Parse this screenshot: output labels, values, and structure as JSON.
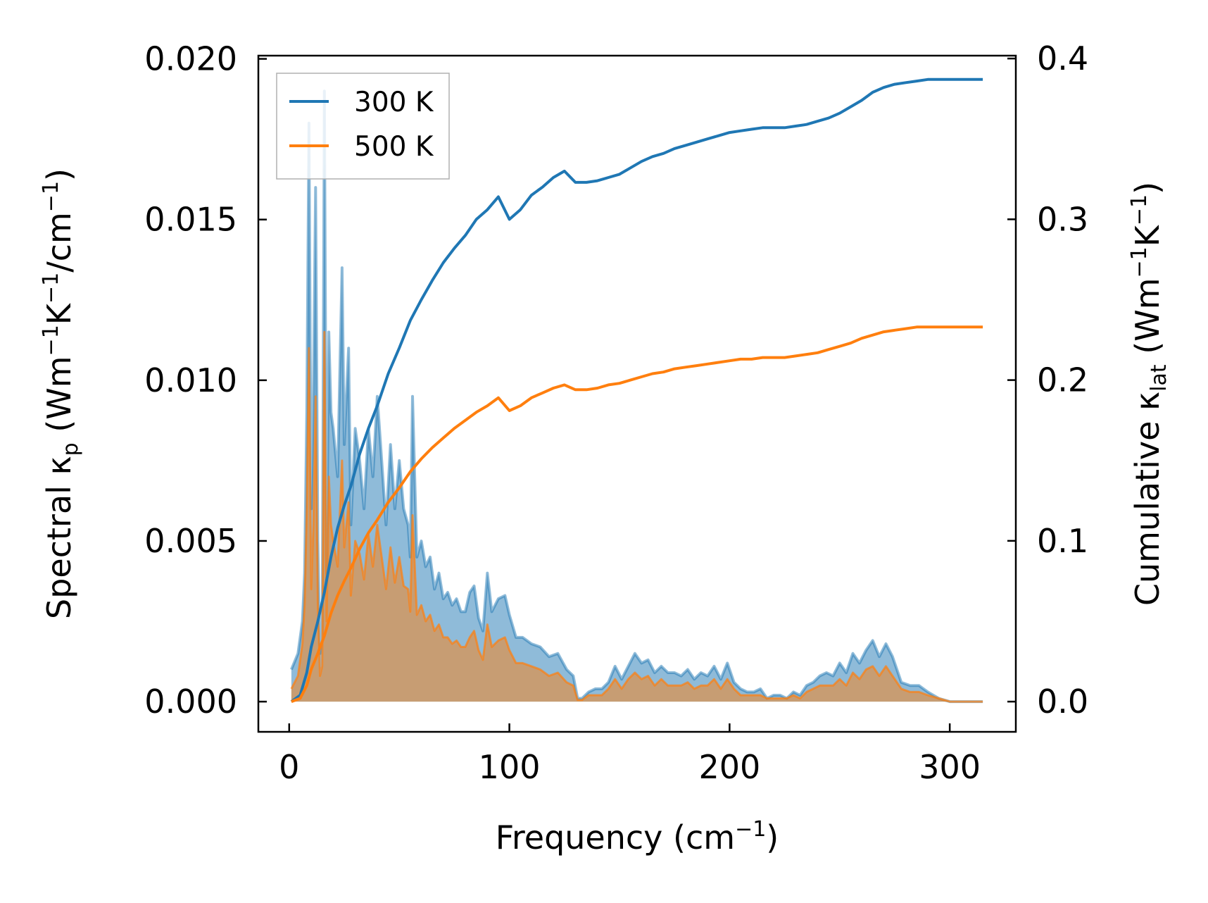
{
  "chart_data": {
    "type": "line",
    "title": "",
    "xlabel": "Frequency (cm⁻¹)",
    "ylabel_left": "Spectral κₚ (Wm⁻¹K⁻¹/cm⁻¹)",
    "ylabel_right": "Cumulative κ_lat (Wm⁻¹K⁻¹)",
    "xlim": [
      -14,
      330
    ],
    "ylim_left": [
      -0.00094,
      0.0201
    ],
    "ylim_right": [
      -0.0188,
      0.4018
    ],
    "x_ticks": [
      0,
      100,
      200,
      300
    ],
    "y_left_ticks": [
      "0.000",
      "0.005",
      "0.010",
      "0.015",
      "0.020"
    ],
    "y_right_ticks": [
      "0.0",
      "0.1",
      "0.2",
      "0.3",
      "0.4"
    ],
    "legend": {
      "position": "top-left",
      "entries": [
        "300 K",
        "500 K"
      ]
    },
    "colors": {
      "t300": "#1f77b4",
      "t500": "#ff7f0e"
    },
    "spectral_x": [
      1,
      4,
      6,
      7,
      8,
      9,
      10,
      11,
      12,
      13,
      14,
      15,
      16,
      17,
      18,
      19,
      20,
      22,
      24,
      25,
      27,
      28,
      30,
      32,
      34,
      36,
      38,
      40,
      42,
      44,
      46,
      48,
      50,
      52,
      54,
      55,
      56,
      58,
      60,
      62,
      64,
      66,
      68,
      70,
      72,
      74,
      76,
      78,
      80,
      82,
      84,
      86,
      88,
      90,
      92,
      95,
      98,
      100,
      103,
      106,
      110,
      114,
      118,
      122,
      126,
      129,
      131,
      133,
      136,
      139,
      142,
      145,
      148,
      151,
      154,
      157,
      160,
      163,
      166,
      169,
      172,
      175,
      178,
      181,
      184,
      187,
      190,
      193,
      196,
      199,
      202,
      205,
      208,
      211,
      214,
      217,
      220,
      223,
      226,
      229,
      232,
      235,
      238,
      241,
      244,
      247,
      250,
      253,
      256,
      259,
      262,
      265,
      268,
      271,
      274,
      278,
      282,
      286,
      290,
      295,
      300,
      315
    ],
    "spectral_300": [
      0.001,
      0.0015,
      0.0025,
      0.004,
      0.009,
      0.018,
      0.006,
      0.0095,
      0.016,
      0.005,
      0.0015,
      0.002,
      0.019,
      0.004,
      0.0115,
      0.009,
      0.0085,
      0.007,
      0.0135,
      0.008,
      0.011,
      0.0055,
      0.0085,
      0.0075,
      0.006,
      0.0085,
      0.007,
      0.0095,
      0.0075,
      0.0055,
      0.008,
      0.006,
      0.0075,
      0.006,
      0.0055,
      0.0045,
      0.0095,
      0.0045,
      0.005,
      0.0042,
      0.0045,
      0.0035,
      0.004,
      0.0032,
      0.0034,
      0.003,
      0.0032,
      0.0028,
      0.0028,
      0.0034,
      0.0036,
      0.0026,
      0.0022,
      0.004,
      0.0028,
      0.0032,
      0.0033,
      0.0027,
      0.002,
      0.002,
      0.0018,
      0.0017,
      0.0014,
      0.0015,
      0.001,
      0.0008,
      0.0001,
      0.0001,
      0.0003,
      0.0004,
      0.0004,
      0.0006,
      0.0011,
      0.0007,
      0.0011,
      0.0015,
      0.0012,
      0.0013,
      0.0009,
      0.0011,
      0.0009,
      0.0009,
      0.0008,
      0.001,
      0.0007,
      0.0009,
      0.0008,
      0.0011,
      0.0007,
      0.0012,
      0.0006,
      0.0004,
      0.0003,
      0.0003,
      0.0004,
      0.0001,
      0.0002,
      0.0002,
      0.0001,
      0.0003,
      0.0002,
      0.0005,
      0.0006,
      0.0008,
      0.0009,
      0.0008,
      0.0012,
      0.0009,
      0.0015,
      0.0012,
      0.0016,
      0.0019,
      0.0014,
      0.0018,
      0.0014,
      0.0006,
      0.0005,
      0.0005,
      0.0003,
      0.0001,
      0.0,
      0.0
    ],
    "spectral_500": [
      0.0004,
      0.0008,
      0.0018,
      0.003,
      0.006,
      0.011,
      0.0035,
      0.0055,
      0.0095,
      0.003,
      0.0008,
      0.0011,
      0.0115,
      0.0025,
      0.007,
      0.0055,
      0.005,
      0.0042,
      0.0075,
      0.0048,
      0.0062,
      0.0033,
      0.005,
      0.0046,
      0.0038,
      0.0052,
      0.0042,
      0.0055,
      0.0045,
      0.0035,
      0.0048,
      0.0037,
      0.0045,
      0.0036,
      0.0035,
      0.0028,
      0.0058,
      0.0027,
      0.003,
      0.0025,
      0.0027,
      0.0022,
      0.0024,
      0.002,
      0.002,
      0.0018,
      0.0019,
      0.0017,
      0.0017,
      0.002,
      0.0022,
      0.0016,
      0.0013,
      0.0024,
      0.0017,
      0.0019,
      0.002,
      0.0016,
      0.0012,
      0.0012,
      0.0011,
      0.001,
      0.0008,
      0.0009,
      0.0006,
      0.0005,
      5e-05,
      5e-05,
      0.0002,
      0.0002,
      0.0002,
      0.0004,
      0.0007,
      0.0004,
      0.0007,
      0.0009,
      0.0007,
      0.0008,
      0.0005,
      0.0007,
      0.0005,
      0.0005,
      0.0005,
      0.0006,
      0.0004,
      0.0005,
      0.0005,
      0.0007,
      0.0004,
      0.0007,
      0.0004,
      0.0002,
      0.0002,
      0.0002,
      0.0002,
      0.0001,
      0.0001,
      0.0001,
      0.0001,
      0.0002,
      0.0001,
      0.0003,
      0.0004,
      0.0005,
      0.0005,
      0.0005,
      0.0007,
      0.0005,
      0.0009,
      0.0007,
      0.001,
      0.0011,
      0.0008,
      0.0011,
      0.0008,
      0.0004,
      0.0003,
      0.0003,
      0.0002,
      0.0001,
      0.0,
      0.0
    ],
    "cumulative_x": [
      1,
      5,
      8,
      10,
      13,
      16,
      19,
      22,
      25,
      28,
      32,
      36,
      40,
      45,
      50,
      55,
      60,
      65,
      70,
      75,
      80,
      85,
      90,
      95,
      100,
      105,
      110,
      115,
      120,
      125,
      130,
      135,
      140,
      145,
      150,
      155,
      160,
      165,
      170,
      175,
      180,
      185,
      190,
      195,
      200,
      205,
      210,
      215,
      220,
      225,
      230,
      235,
      240,
      245,
      250,
      255,
      260,
      265,
      270,
      275,
      280,
      285,
      290,
      295,
      300,
      315
    ],
    "cumulative_300": [
      0.0,
      0.004,
      0.018,
      0.034,
      0.05,
      0.068,
      0.09,
      0.108,
      0.122,
      0.134,
      0.154,
      0.17,
      0.184,
      0.204,
      0.22,
      0.237,
      0.25,
      0.262,
      0.273,
      0.282,
      0.29,
      0.3,
      0.306,
      0.314,
      0.3,
      0.306,
      0.315,
      0.32,
      0.326,
      0.33,
      0.323,
      0.323,
      0.324,
      0.326,
      0.328,
      0.332,
      0.336,
      0.339,
      0.341,
      0.344,
      0.346,
      0.348,
      0.35,
      0.352,
      0.354,
      0.355,
      0.356,
      0.357,
      0.357,
      0.357,
      0.358,
      0.359,
      0.361,
      0.363,
      0.366,
      0.37,
      0.374,
      0.379,
      0.382,
      0.384,
      0.385,
      0.386,
      0.387,
      0.387,
      0.387,
      0.387
    ],
    "cumulative_500": [
      0.0,
      0.002,
      0.01,
      0.02,
      0.03,
      0.041,
      0.055,
      0.066,
      0.075,
      0.083,
      0.095,
      0.105,
      0.113,
      0.124,
      0.133,
      0.143,
      0.151,
      0.158,
      0.164,
      0.17,
      0.175,
      0.18,
      0.184,
      0.189,
      0.181,
      0.184,
      0.189,
      0.192,
      0.195,
      0.197,
      0.194,
      0.194,
      0.195,
      0.197,
      0.198,
      0.2,
      0.202,
      0.204,
      0.205,
      0.207,
      0.208,
      0.209,
      0.21,
      0.211,
      0.212,
      0.213,
      0.213,
      0.214,
      0.214,
      0.214,
      0.215,
      0.216,
      0.217,
      0.219,
      0.221,
      0.223,
      0.226,
      0.228,
      0.23,
      0.231,
      0.232,
      0.233,
      0.233,
      0.233,
      0.233,
      0.233
    ]
  }
}
